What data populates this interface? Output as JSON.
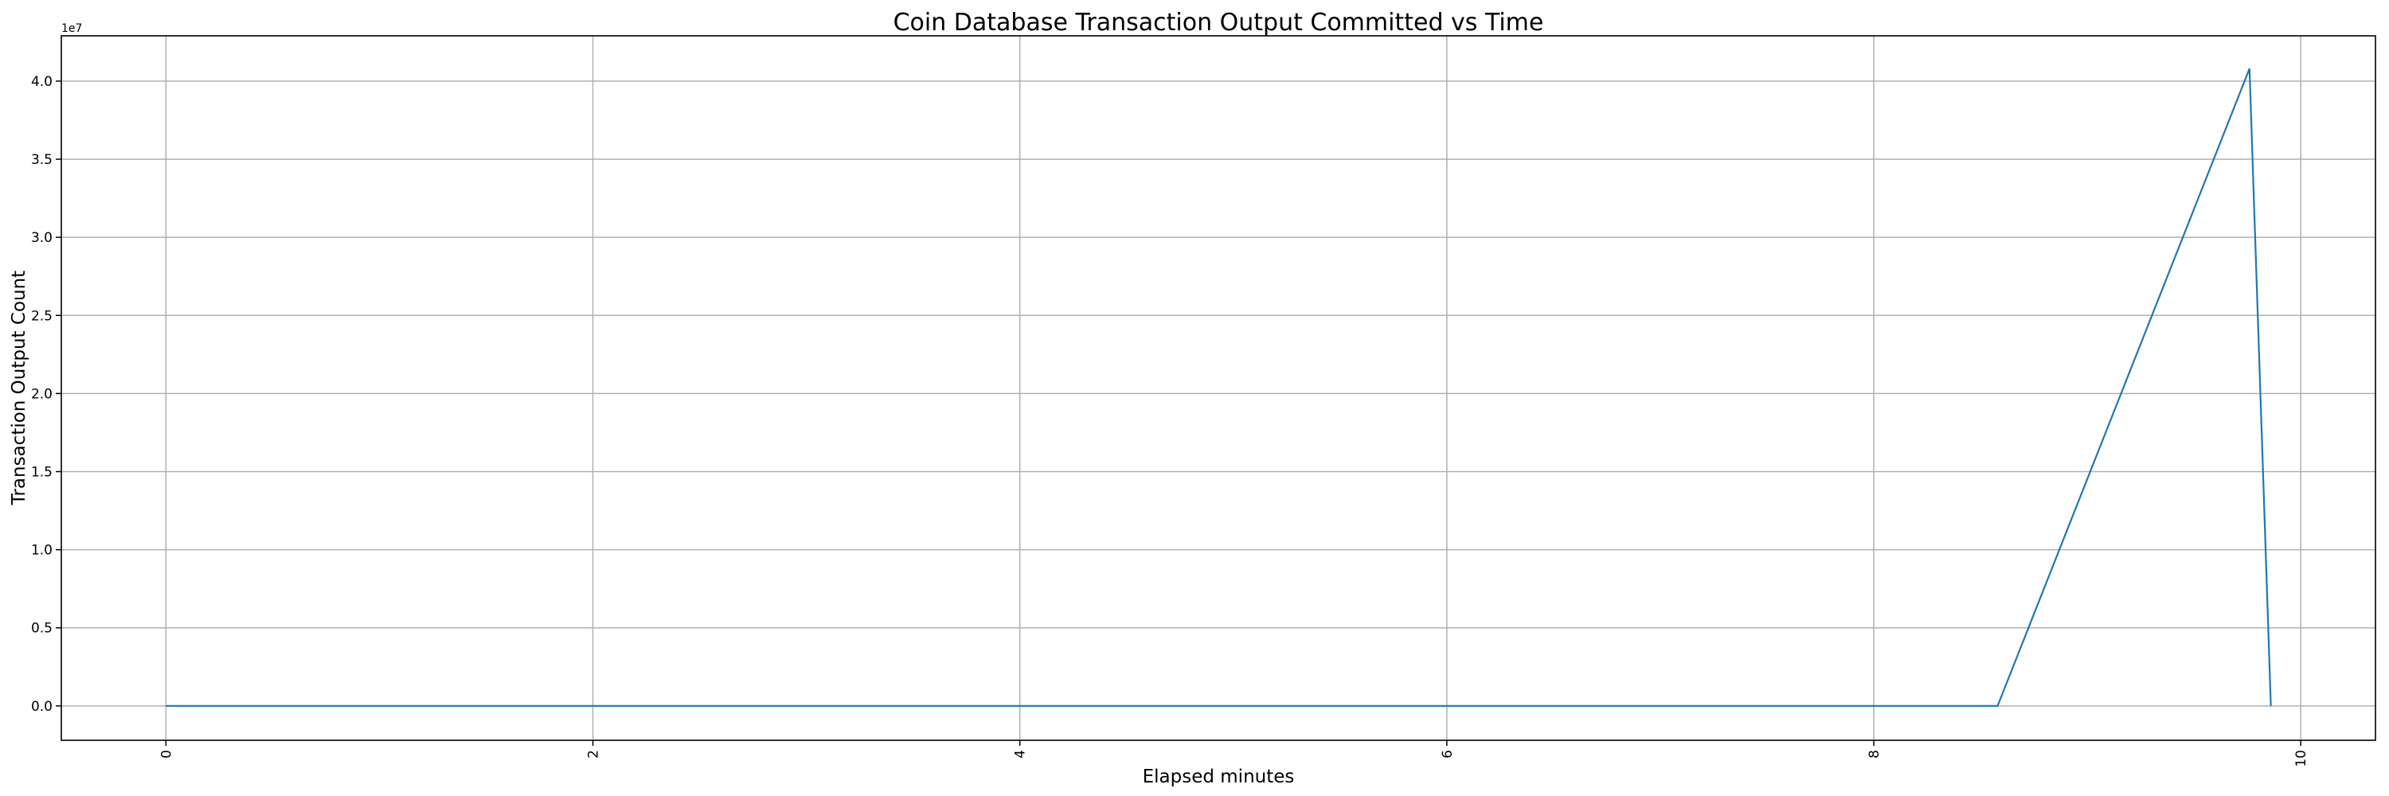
{
  "chart_data": {
    "type": "line",
    "title": "Coin Database Transaction Output Committed vs Time",
    "xlabel": "Elapsed minutes",
    "ylabel": "Transaction Output Count",
    "y_offset_label": "1e7",
    "xlim": [
      -0.49,
      10.35
    ],
    "ylim": [
      -2200000,
      42900000
    ],
    "x_ticks": [
      0,
      2,
      4,
      6,
      8,
      10
    ],
    "x_tick_labels": [
      "0",
      "2",
      "4",
      "6",
      "8",
      "10"
    ],
    "y_ticks": [
      0,
      5000000,
      10000000,
      15000000,
      20000000,
      25000000,
      30000000,
      35000000,
      40000000
    ],
    "y_tick_labels": [
      "0.0",
      "0.5",
      "1.0",
      "1.5",
      "2.0",
      "2.5",
      "3.0",
      "3.5",
      "4.0"
    ],
    "grid": true,
    "series": [
      {
        "color": "#1f77b4",
        "x": [
          0,
          8.58,
          9.76,
          9.86
        ],
        "y": [
          0,
          0,
          40800000,
          0
        ]
      }
    ]
  }
}
